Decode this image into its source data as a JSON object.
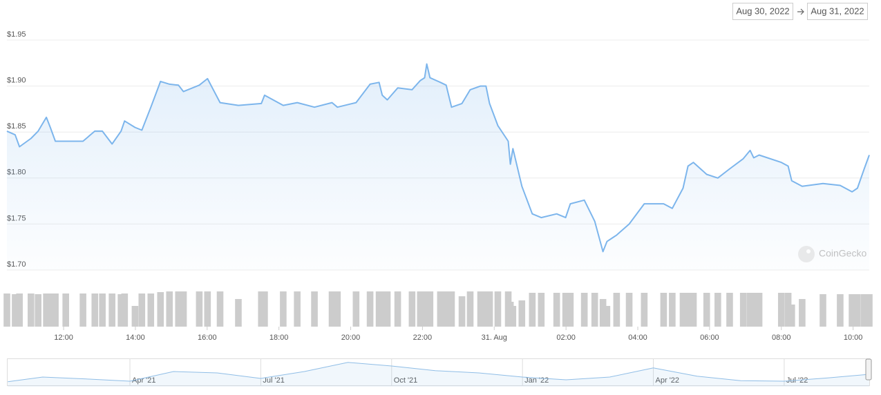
{
  "date_range": {
    "from": "Aug 30, 2022",
    "to": "Aug 31, 2022"
  },
  "watermark": "CoinGecko",
  "chart_data": [
    {
      "type": "area",
      "color": "#7cb5ec",
      "grid": true,
      "x": [
        10.42,
        10.65,
        10.77,
        11.09,
        11.29,
        11.52,
        11.63,
        11.77,
        12.06,
        12.54,
        12.87,
        13.08,
        13.35,
        13.6,
        13.7,
        13.99,
        14.18,
        14.43,
        14.7,
        14.95,
        15.2,
        15.34,
        15.78,
        16.01,
        16.36,
        16.87,
        17.51,
        17.6,
        18.12,
        18.51,
        18.99,
        19.48,
        19.63,
        20.15,
        20.54,
        20.79,
        20.88,
        21.02,
        21.31,
        21.71,
        21.94,
        22.06,
        22.12,
        22.21,
        22.5,
        22.66,
        22.81,
        23.1,
        23.33,
        23.62,
        23.77,
        23.87,
        24.1,
        24.39,
        24.45,
        24.52,
        24.77,
        25.06,
        25.31,
        25.74,
        25.99,
        26.12,
        26.51,
        26.8,
        27.03,
        27.14,
        27.41,
        27.76,
        28.18,
        28.72,
        28.96,
        29.26,
        29.4,
        29.55,
        29.92,
        30.23,
        30.56,
        30.94,
        31.13,
        31.23,
        31.38,
        32.0,
        32.19,
        32.29,
        32.58,
        33.16,
        33.64,
        33.97,
        34.12,
        34.31,
        34.45
      ],
      "values": [
        1.851,
        1.847,
        1.834,
        1.843,
        1.851,
        1.866,
        1.855,
        1.84,
        1.84,
        1.84,
        1.851,
        1.851,
        1.837,
        1.851,
        1.862,
        1.855,
        1.852,
        1.877,
        1.905,
        1.902,
        1.901,
        1.894,
        1.901,
        1.908,
        1.882,
        1.879,
        1.881,
        1.89,
        1.879,
        1.882,
        1.877,
        1.882,
        1.877,
        1.882,
        1.902,
        1.904,
        1.89,
        1.885,
        1.898,
        1.896,
        1.906,
        1.909,
        1.924,
        1.909,
        1.904,
        1.901,
        1.877,
        1.881,
        1.896,
        1.9,
        1.9,
        1.881,
        1.857,
        1.84,
        1.815,
        1.832,
        1.791,
        1.761,
        1.757,
        1.761,
        1.757,
        1.772,
        1.776,
        1.753,
        1.72,
        1.731,
        1.738,
        1.75,
        1.772,
        1.772,
        1.767,
        1.789,
        1.813,
        1.817,
        1.804,
        1.8,
        1.81,
        1.821,
        1.83,
        1.822,
        1.825,
        1.817,
        1.813,
        1.797,
        1.791,
        1.794,
        1.792,
        1.785,
        1.789,
        1.81,
        1.825
      ],
      "volume": [
        48,
        47,
        48,
        48,
        47,
        48,
        48,
        48,
        48,
        48,
        48,
        48,
        48,
        47,
        48,
        30,
        48,
        48,
        50,
        51,
        51,
        51,
        51,
        51,
        51,
        40,
        51,
        51,
        51,
        51,
        51,
        51,
        51,
        51,
        51,
        51,
        51,
        51,
        51,
        51,
        51,
        51,
        51,
        51,
        51,
        51,
        51,
        44,
        51,
        51,
        51,
        51,
        51,
        51,
        36,
        30,
        38,
        49,
        49,
        49,
        49,
        49,
        49,
        49,
        40,
        30,
        49,
        49,
        49,
        49,
        49,
        49,
        49,
        49,
        49,
        49,
        49,
        49,
        49,
        49,
        49,
        49,
        49,
        32,
        40,
        47,
        47,
        47,
        47,
        47,
        47
      ],
      "volume_color": "#cccccc",
      "xlim": [
        10.42,
        34.45
      ],
      "xticks": [
        {
          "value": 12,
          "label": "12:00"
        },
        {
          "value": 14,
          "label": "14:00"
        },
        {
          "value": 16,
          "label": "16:00"
        },
        {
          "value": 18,
          "label": "18:00"
        },
        {
          "value": 20,
          "label": "20:00"
        },
        {
          "value": 22,
          "label": "22:00"
        },
        {
          "value": 24,
          "label": "31. Aug"
        },
        {
          "value": 26,
          "label": "02:00"
        },
        {
          "value": 28,
          "label": "04:00"
        },
        {
          "value": 30,
          "label": "06:00"
        },
        {
          "value": 32,
          "label": "08:00"
        },
        {
          "value": 34,
          "label": "10:00"
        }
      ],
      "ylim": [
        1.7,
        1.95
      ],
      "yticks": [
        {
          "value": 1.7,
          "label": "$1.70"
        },
        {
          "value": 1.75,
          "label": "$1.75"
        },
        {
          "value": 1.8,
          "label": "$1.80"
        },
        {
          "value": 1.85,
          "label": "$1.85"
        },
        {
          "value": 1.9,
          "label": "$1.90"
        },
        {
          "value": 1.95,
          "label": "$1.95"
        }
      ],
      "y2lim": [
        0,
        60
      ]
    },
    {
      "type": "area",
      "color": "#8fbde6",
      "x": [
        0.2,
        1,
        2,
        3,
        4,
        5,
        6,
        7,
        8,
        9,
        10,
        11,
        12,
        13,
        14,
        15,
        16,
        17,
        18,
        19,
        19.95
      ],
      "values": [
        0.18,
        0.35,
        0.28,
        0.2,
        0.55,
        0.5,
        0.3,
        0.55,
        0.88,
        0.75,
        0.58,
        0.5,
        0.35,
        0.25,
        0.35,
        0.68,
        0.38,
        0.22,
        0.2,
        0.32,
        0.45
      ],
      "xlim": [
        0.18,
        19.95
      ],
      "xticks": [
        {
          "value": 3,
          "label": "Apr '21"
        },
        {
          "value": 6,
          "label": "Jul '21"
        },
        {
          "value": 9,
          "label": "Oct '21"
        },
        {
          "value": 12,
          "label": "Jan '22"
        },
        {
          "value": 15,
          "label": "Apr '22"
        },
        {
          "value": 18,
          "label": "Jul '22"
        }
      ],
      "ylim": [
        0,
        1
      ]
    }
  ]
}
